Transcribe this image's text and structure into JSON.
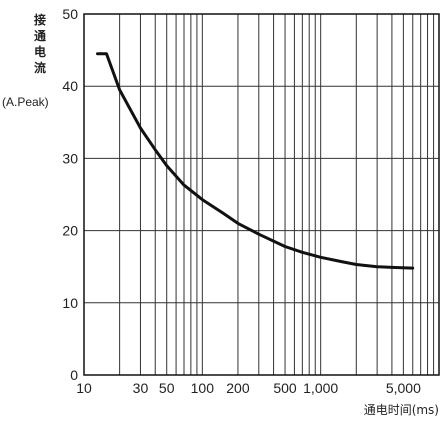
{
  "chart_data": {
    "type": "line",
    "x_scale": "log",
    "xlim": [
      10,
      10000
    ],
    "ylim": [
      0,
      50
    ],
    "grid": true,
    "ylabel_chars": [
      "接",
      "通",
      "电",
      "流"
    ],
    "ylabel_unit": "(A.Peak)",
    "xlabel": "通电时间(ms)",
    "y_ticks": [
      0,
      10,
      20,
      30,
      40,
      50
    ],
    "x_tick_labels": [
      {
        "value": 10,
        "label": "10"
      },
      {
        "value": 30,
        "label": "30"
      },
      {
        "value": 50,
        "label": "50"
      },
      {
        "value": 100,
        "label": "100"
      },
      {
        "value": 200,
        "label": "200"
      },
      {
        "value": 500,
        "label": "500"
      },
      {
        "value": 1000,
        "label": "1,000"
      },
      {
        "value": 5000,
        "label": "5,000"
      }
    ],
    "x_grid": [
      10,
      20,
      30,
      40,
      50,
      60,
      70,
      80,
      90,
      100,
      200,
      300,
      400,
      500,
      600,
      700,
      800,
      900,
      1000,
      2000,
      3000,
      4000,
      5000,
      6000,
      7000,
      8000,
      9000,
      10000
    ],
    "series": [
      {
        "color": "#111111",
        "points": [
          [
            13,
            44.5
          ],
          [
            15.5,
            44.5
          ],
          [
            20,
            39.5
          ],
          [
            30,
            34.2
          ],
          [
            40,
            31.2
          ],
          [
            50,
            29
          ],
          [
            70,
            26.3
          ],
          [
            100,
            24.3
          ],
          [
            150,
            22.4
          ],
          [
            200,
            21.0
          ],
          [
            300,
            19.5
          ],
          [
            500,
            17.8
          ],
          [
            700,
            17.0
          ],
          [
            1000,
            16.3
          ],
          [
            1500,
            15.7
          ],
          [
            2000,
            15.3
          ],
          [
            3000,
            15.0
          ],
          [
            4000,
            14.9
          ],
          [
            6000,
            14.8
          ]
        ]
      }
    ]
  }
}
